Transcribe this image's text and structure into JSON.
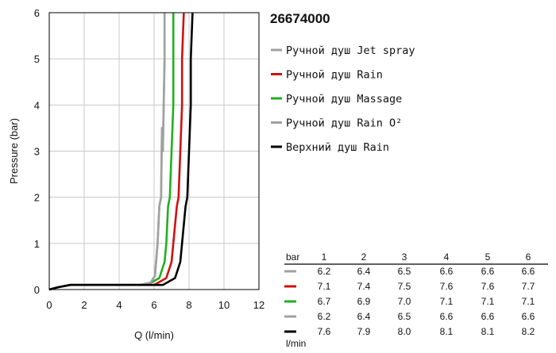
{
  "product_code": "26674000",
  "chart_data": {
    "type": "line",
    "title": "",
    "xlabel": "Q (l/min)",
    "ylabel": "Pressure (bar)",
    "xlim": [
      0,
      12
    ],
    "ylim": [
      0,
      6
    ],
    "xticks": [
      0,
      2,
      4,
      6,
      8,
      10,
      12
    ],
    "yticks": [
      0,
      1,
      2,
      3,
      4,
      5,
      6
    ],
    "grid": true,
    "legend_position": "right",
    "series": [
      {
        "name": "Ручной душ Jet spray",
        "color": "#a0a0a0",
        "points": [
          [
            0,
            0
          ],
          [
            0.5,
            0.05
          ],
          [
            1.2,
            0.1
          ],
          [
            5.2,
            0.1
          ],
          [
            5.8,
            0.15
          ],
          [
            6.05,
            0.3
          ],
          [
            6.2,
            1
          ],
          [
            6.3,
            1.8
          ],
          [
            6.4,
            2
          ],
          [
            6.45,
            3.5
          ],
          [
            6.5,
            3
          ],
          [
            6.55,
            4
          ],
          [
            6.6,
            5
          ],
          [
            6.6,
            6
          ]
        ]
      },
      {
        "name": "Ручной душ Rain",
        "color": "#d01010",
        "points": [
          [
            0,
            0
          ],
          [
            0.5,
            0.05
          ],
          [
            1.2,
            0.1
          ],
          [
            6.0,
            0.1
          ],
          [
            6.7,
            0.25
          ],
          [
            7.0,
            0.6
          ],
          [
            7.1,
            1
          ],
          [
            7.3,
            1.8
          ],
          [
            7.4,
            2
          ],
          [
            7.5,
            3
          ],
          [
            7.6,
            4
          ],
          [
            7.6,
            5
          ],
          [
            7.7,
            6
          ]
        ]
      },
      {
        "name": "Ручной душ Massage",
        "color": "#20b020",
        "points": [
          [
            0,
            0
          ],
          [
            0.5,
            0.05
          ],
          [
            1.2,
            0.1
          ],
          [
            5.6,
            0.1
          ],
          [
            6.3,
            0.25
          ],
          [
            6.6,
            0.6
          ],
          [
            6.7,
            1
          ],
          [
            6.8,
            1.8
          ],
          [
            6.9,
            2
          ],
          [
            7.0,
            3
          ],
          [
            7.1,
            4
          ],
          [
            7.1,
            5
          ],
          [
            7.1,
            6
          ]
        ]
      },
      {
        "name": "Ручной душ Rain O²",
        "color": "#a0a0a0",
        "points": [
          [
            0,
            0
          ],
          [
            0.5,
            0.05
          ],
          [
            1.2,
            0.1
          ],
          [
            5.2,
            0.1
          ],
          [
            5.8,
            0.15
          ],
          [
            6.05,
            0.3
          ],
          [
            6.2,
            1
          ],
          [
            6.3,
            1.8
          ],
          [
            6.4,
            2
          ],
          [
            6.45,
            3.5
          ],
          [
            6.5,
            3
          ],
          [
            6.55,
            4
          ],
          [
            6.6,
            5
          ],
          [
            6.6,
            6
          ]
        ]
      },
      {
        "name": "Верхний душ Rain",
        "color": "#000000",
        "points": [
          [
            0,
            0
          ],
          [
            0.5,
            0.05
          ],
          [
            1.2,
            0.1
          ],
          [
            6.5,
            0.1
          ],
          [
            7.2,
            0.25
          ],
          [
            7.5,
            0.6
          ],
          [
            7.6,
            1
          ],
          [
            7.8,
            1.8
          ],
          [
            7.9,
            2
          ],
          [
            8.0,
            3
          ],
          [
            8.1,
            4
          ],
          [
            8.1,
            5
          ],
          [
            8.2,
            6
          ]
        ]
      }
    ],
    "table": {
      "unit_label": "bar",
      "flow_unit": "l/min",
      "pressures": [
        "1",
        "2",
        "3",
        "4",
        "5",
        "6"
      ],
      "rows": [
        {
          "color": "#a0a0a0",
          "values": [
            "6.2",
            "6.4",
            "6.5",
            "6.6",
            "6.6",
            "6.6"
          ]
        },
        {
          "color": "#d01010",
          "values": [
            "7.1",
            "7.4",
            "7.5",
            "7.6",
            "7.6",
            "7.7"
          ]
        },
        {
          "color": "#20b020",
          "values": [
            "6.7",
            "6.9",
            "7.0",
            "7.1",
            "7.1",
            "7.1"
          ]
        },
        {
          "color": "#a0a0a0",
          "values": [
            "6.2",
            "6.4",
            "6.5",
            "6.6",
            "6.6",
            "6.6"
          ]
        },
        {
          "color": "#000000",
          "values": [
            "7.6",
            "7.9",
            "8.0",
            "8.1",
            "8.1",
            "8.2"
          ]
        }
      ]
    }
  }
}
